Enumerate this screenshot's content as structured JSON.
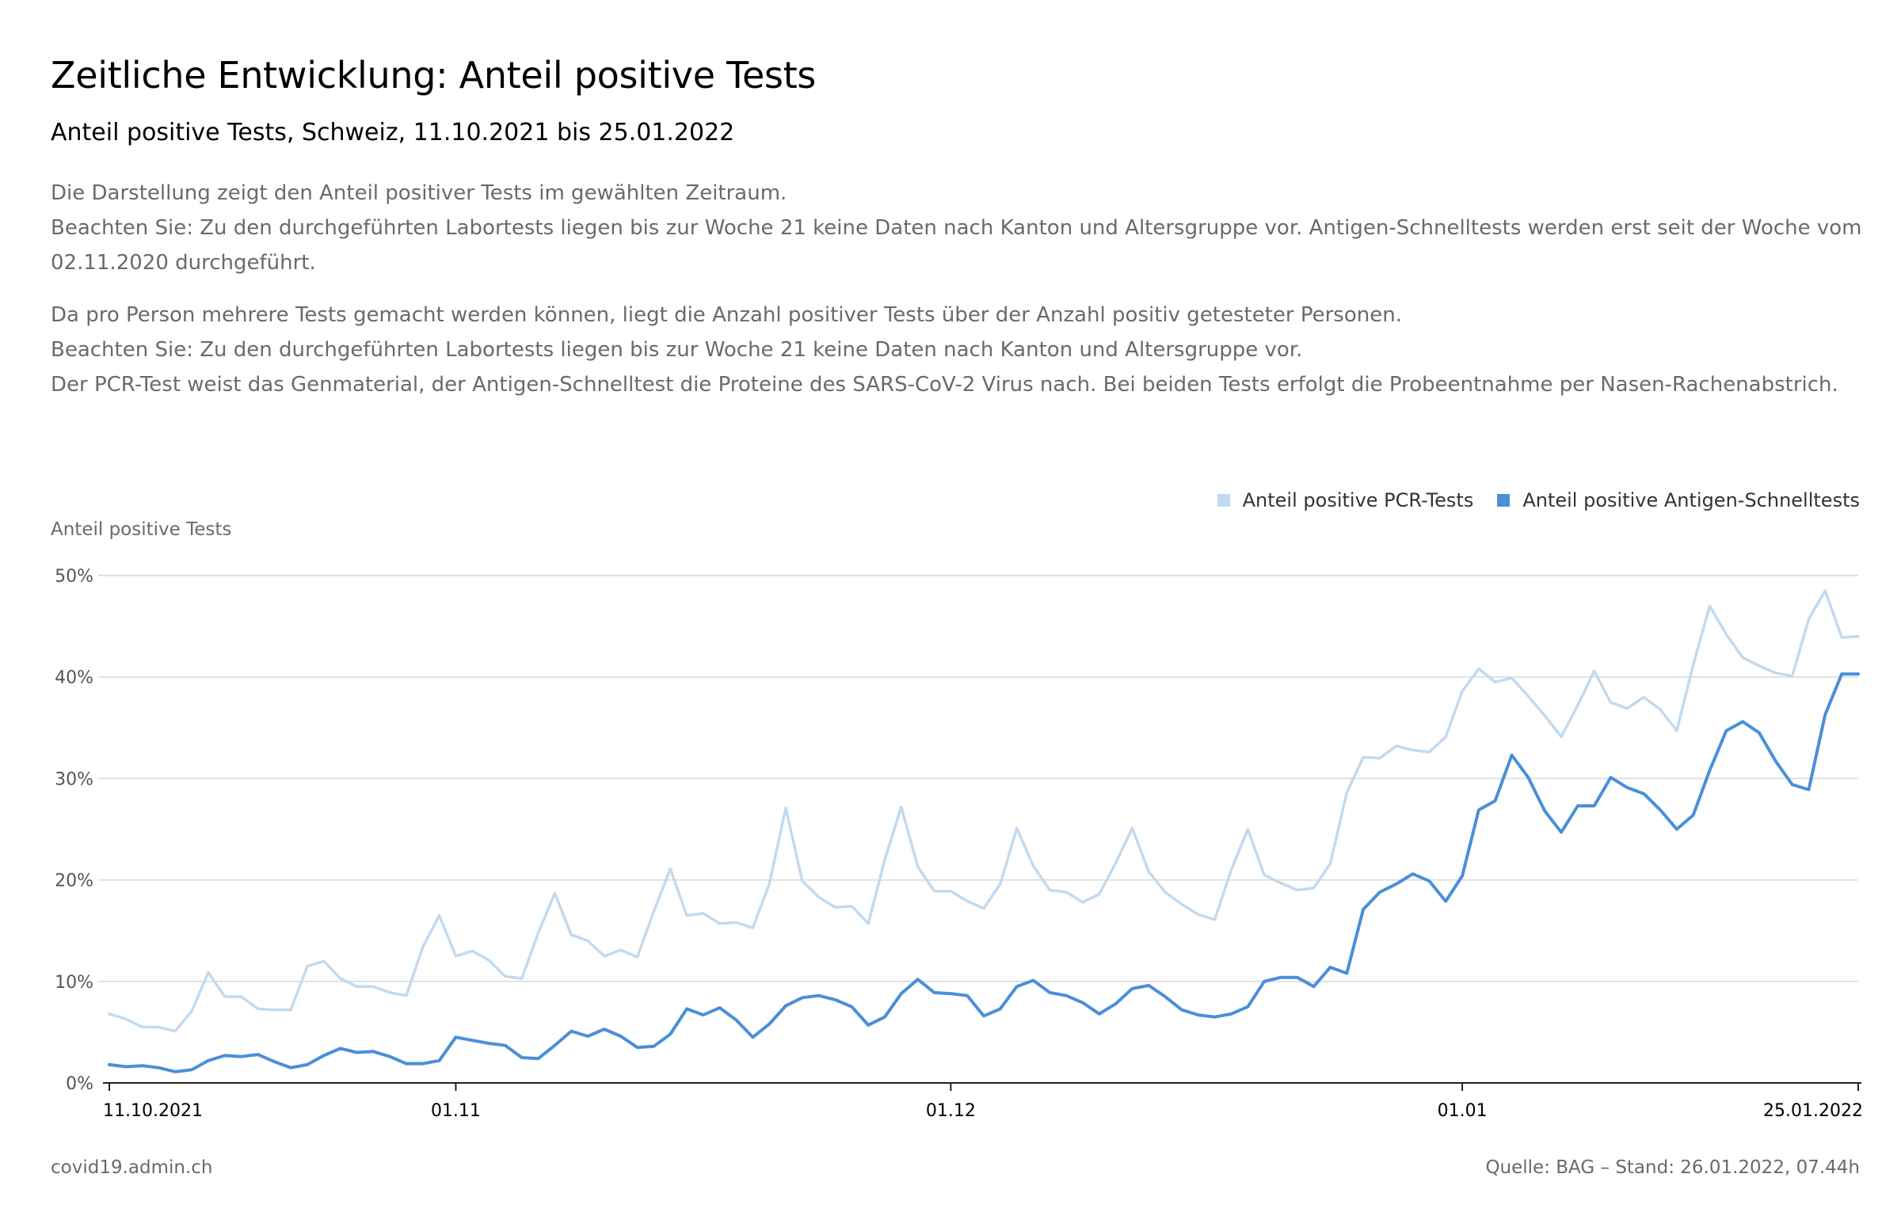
{
  "header": {
    "title": "Zeitliche Entwicklung: Anteil positive Tests",
    "subtitle": "Anteil positive Tests, Schweiz, 11.10.2021 bis 25.01.2022"
  },
  "description": {
    "p1_line1": "Die Darstellung zeigt den Anteil positiver Tests im gewählten Zeitraum.",
    "p1_line2": "Beachten Sie: Zu den durchgeführten Labortests liegen bis zur Woche 21 keine Daten nach Kanton und Altersgruppe vor. Antigen-Schnelltests werden erst seit der Woche vom 02.11.2020 durchgeführt.",
    "p2_line1": "Da pro Person mehrere Tests gemacht werden können, liegt die Anzahl positiver Tests über der Anzahl positiv getesteter Personen.",
    "p2_line2": "Beachten Sie: Zu den durchgeführten Labortests liegen bis zur Woche 21 keine Daten nach Kanton und Altersgruppe vor.",
    "p2_line3": "Der PCR-Test weist das Genmaterial, der Antigen-Schnelltest die Proteine des SARS-CoV-2 Virus nach. Bei beiden Tests erfolgt die Probeentnahme per Nasen-Rachenabstrich."
  },
  "footer": {
    "source_site": "covid19.admin.ch",
    "source_note": "Quelle: BAG – Stand: 26.01.2022, 07.44h"
  },
  "chart_data": {
    "type": "line",
    "ylabel": "Anteil positive Tests",
    "ylim": [
      0,
      50
    ],
    "yticks": [
      0,
      10,
      20,
      30,
      40,
      50
    ],
    "ytick_labels": [
      "0%",
      "10%",
      "20%",
      "30%",
      "40%",
      "50%"
    ],
    "x_start": "11.10.2021",
    "x_end": "25.01.2022",
    "x_tick_labels": [
      {
        "date": "11.10.2021",
        "day": 0
      },
      {
        "date": "01.11",
        "day": 21
      },
      {
        "date": "01.12",
        "day": 51
      },
      {
        "date": "01.01",
        "day": 82
      },
      {
        "date": "25.01.2022",
        "day": 106
      }
    ],
    "legend_position": "top-right",
    "grid": true,
    "series": [
      {
        "name": "Anteil positive PCR-Tests",
        "color": "#c2daef",
        "values": [
          6.8,
          6.3,
          5.5,
          5.5,
          5.1,
          7.1,
          10.9,
          8.5,
          8.5,
          7.3,
          7.2,
          7.2,
          11.5,
          12.0,
          10.3,
          9.5,
          9.5,
          8.9,
          8.6,
          13.4,
          16.5,
          12.5,
          13.0,
          12.1,
          10.5,
          10.3,
          14.8,
          18.7,
          14.6,
          14.0,
          12.5,
          13.1,
          12.4,
          16.9,
          21.1,
          16.5,
          16.7,
          15.7,
          15.8,
          15.3,
          19.6,
          27.1,
          19.9,
          18.3,
          17.3,
          17.4,
          15.7,
          22.0,
          27.2,
          21.3,
          18.9,
          18.9,
          17.9,
          17.2,
          19.6,
          25.1,
          21.4,
          19.0,
          18.8,
          17.8,
          18.6,
          21.7,
          25.1,
          20.8,
          18.8,
          17.6,
          16.6,
          16.1,
          21.0,
          25.0,
          20.5,
          19.7,
          19.0,
          19.2,
          21.6,
          28.6,
          32.1,
          32.0,
          33.2,
          32.8,
          32.6,
          34.1,
          38.6,
          40.8,
          39.5,
          39.9,
          38.1,
          36.2,
          34.1,
          37.2,
          40.6,
          37.5,
          36.9,
          38.0,
          36.8,
          34.7,
          41.2,
          47.0,
          44.2,
          41.9,
          41.1,
          40.4,
          40.1,
          45.7,
          48.5,
          43.9,
          44.0
        ],
        "draw_order": 0
      },
      {
        "name": "Anteil positive Antigen-Schnelltests",
        "color": "#4a8fd8",
        "values": [
          1.8,
          1.6,
          1.7,
          1.5,
          1.1,
          1.3,
          2.2,
          2.7,
          2.6,
          2.8,
          2.1,
          1.5,
          1.8,
          2.7,
          3.4,
          3.0,
          3.1,
          2.6,
          1.9,
          1.9,
          2.2,
          4.5,
          4.2,
          3.9,
          3.7,
          2.5,
          2.4,
          3.7,
          5.1,
          4.6,
          5.3,
          4.6,
          3.5,
          3.6,
          4.8,
          7.3,
          6.7,
          7.4,
          6.2,
          4.5,
          5.8,
          7.6,
          8.4,
          8.6,
          8.2,
          7.5,
          5.7,
          6.5,
          8.8,
          10.2,
          8.9,
          8.8,
          8.6,
          6.6,
          7.3,
          9.5,
          10.1,
          8.9,
          8.6,
          7.9,
          6.8,
          7.8,
          9.3,
          9.6,
          8.5,
          7.2,
          6.7,
          6.5,
          6.8,
          7.5,
          10.0,
          10.4,
          10.4,
          9.5,
          11.4,
          10.8,
          17.1,
          18.8,
          19.6,
          20.6,
          19.9,
          17.9,
          20.4,
          26.9,
          27.8,
          32.3,
          30.1,
          26.8,
          24.7,
          27.3,
          27.3,
          30.1,
          29.1,
          28.5,
          26.9,
          25.0,
          26.4,
          30.8,
          34.7,
          35.6,
          34.5,
          31.7,
          29.4,
          28.9,
          36.3,
          40.3,
          40.3
        ],
        "draw_order": 1
      }
    ]
  }
}
